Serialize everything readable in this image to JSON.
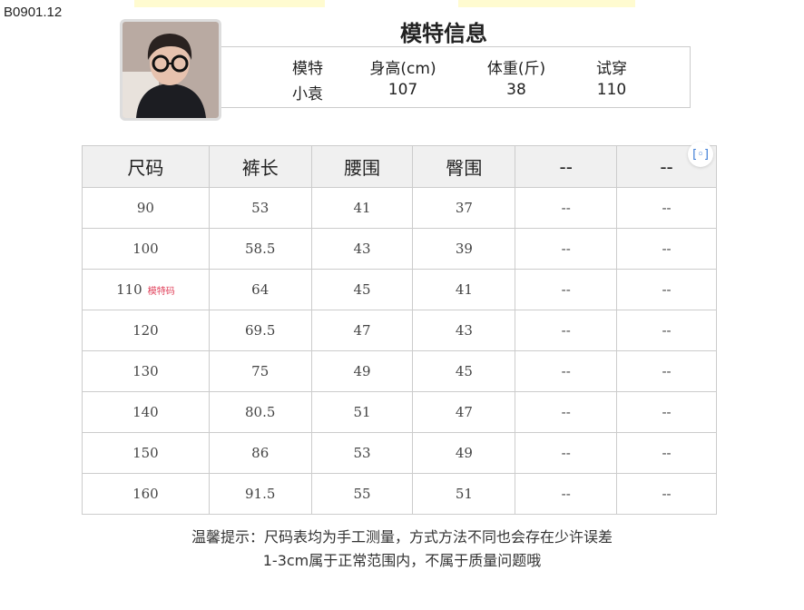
{
  "product_code": "B0901.12",
  "model": {
    "title": "模特信息",
    "headers": [
      "模特",
      "身高(cm)",
      "体重(斤)",
      "试穿"
    ],
    "values": [
      "小袁",
      "107",
      "38",
      "110"
    ]
  },
  "table": {
    "headers": [
      "尺码",
      "裤长",
      "腰围",
      "臀围",
      "--",
      "--"
    ],
    "rows": [
      [
        "90",
        "53",
        "41",
        "37",
        "--",
        "--"
      ],
      [
        "100",
        "58.5",
        "43",
        "39",
        "--",
        "--"
      ],
      [
        "110",
        "64",
        "45",
        "41",
        "--",
        "--"
      ],
      [
        "120",
        "69.5",
        "47",
        "43",
        "--",
        "--"
      ],
      [
        "130",
        "75",
        "49",
        "45",
        "--",
        "--"
      ],
      [
        "140",
        "80.5",
        "51",
        "47",
        "--",
        "--"
      ],
      [
        "150",
        "86",
        "53",
        "49",
        "--",
        "--"
      ],
      [
        "160",
        "91.5",
        "55",
        "51",
        "--",
        "--"
      ]
    ],
    "model_size_tag": "模特码"
  },
  "note": {
    "line1": "温馨提示：尺码表均为手工测量，方式方法不同也会存在少许误差",
    "line2": "1-3cm属于正常范围内，不属于质量问题哦"
  },
  "icons": {
    "scan": "scan-icon"
  }
}
